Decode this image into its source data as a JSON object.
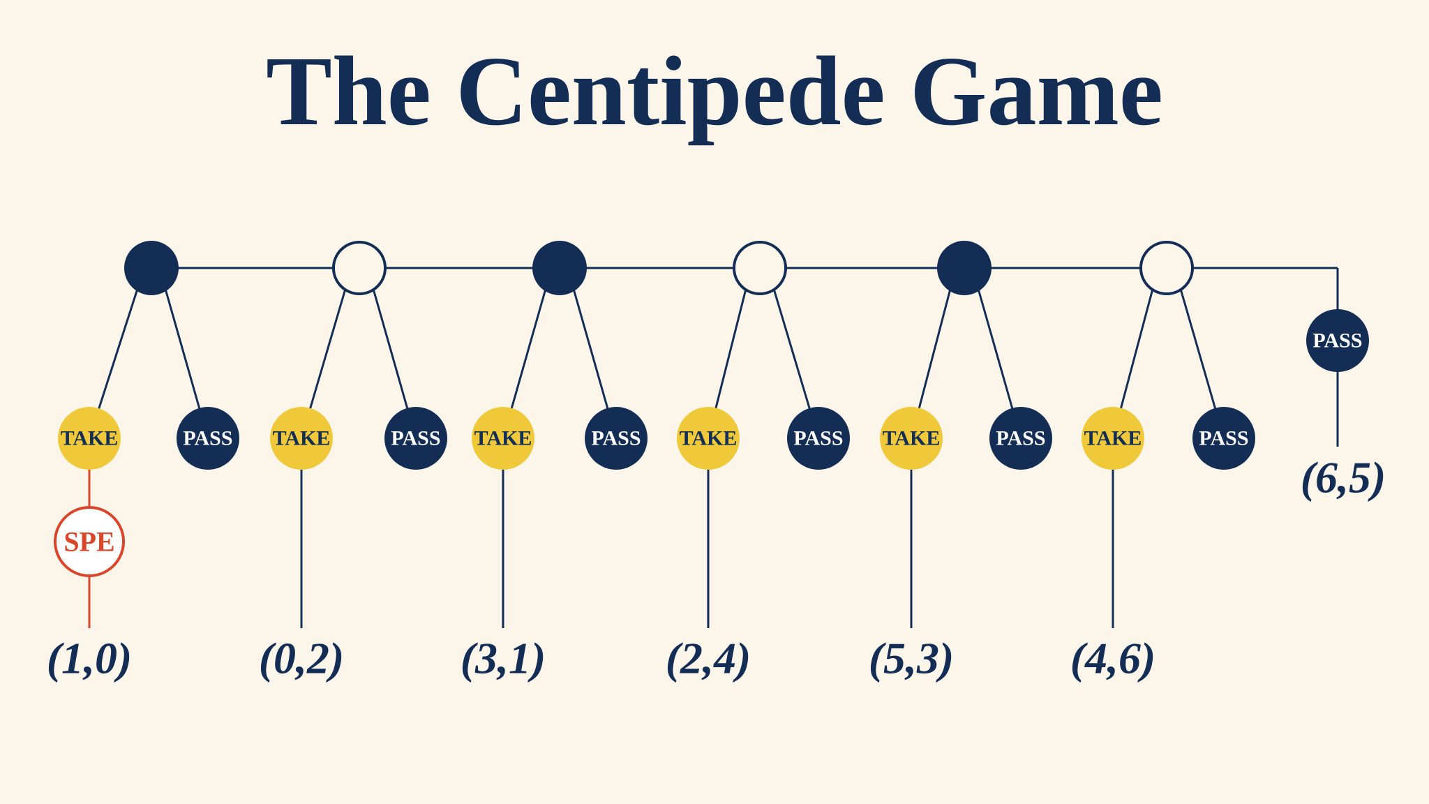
{
  "title": "The Centipede Game",
  "stages": [
    {
      "take": "TAKE",
      "pass": "PASS",
      "payoff": "(1,0)"
    },
    {
      "take": "TAKE",
      "pass": "PASS",
      "payoff": "(0,2)"
    },
    {
      "take": "TAKE",
      "pass": "PASS",
      "payoff": "(3,1)"
    },
    {
      "take": "TAKE",
      "pass": "PASS",
      "payoff": "(2,4)"
    },
    {
      "take": "TAKE",
      "pass": "PASS",
      "payoff": "(5,3)"
    },
    {
      "take": "TAKE",
      "pass": "PASS",
      "payoff": "(4,6)"
    }
  ],
  "final": {
    "action": "PASS",
    "payoff": "(6,5)"
  },
  "spe": "SPE"
}
